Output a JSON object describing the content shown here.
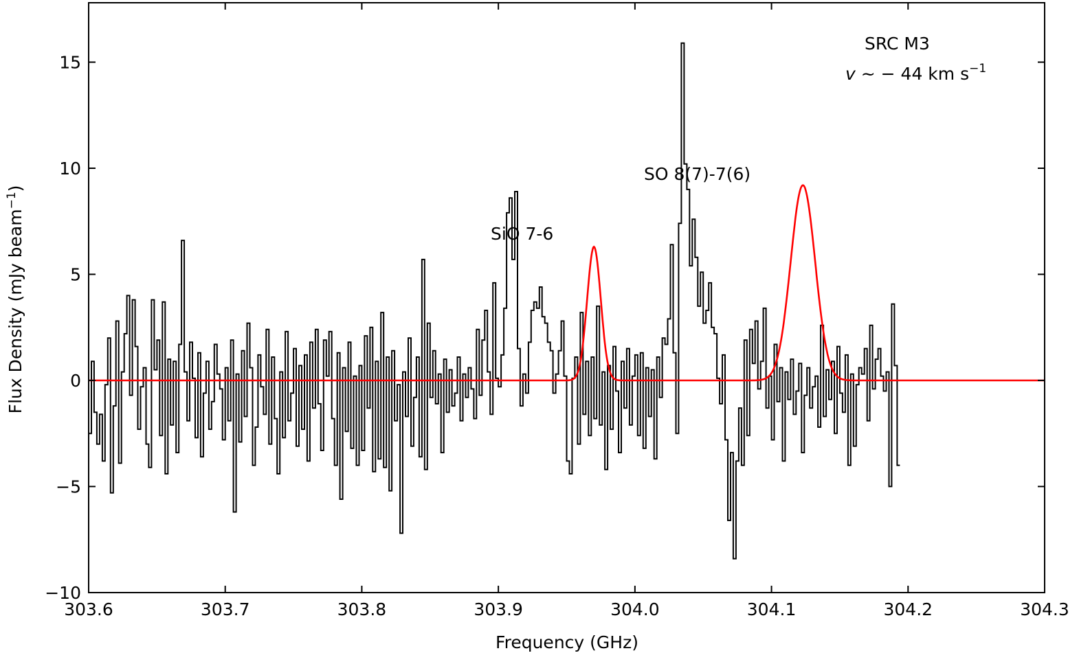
{
  "chart_data": {
    "type": "line",
    "title": "",
    "xlabel": "Frequency (GHz)",
    "ylabel": "Flux Density (mJy beam",
    "ylabel_sup": "−1",
    "ylabel_close": ")",
    "xlim": [
      303.6,
      304.3
    ],
    "ylim": [
      -10.3,
      17.2
    ],
    "xticks": [
      303.6,
      303.7,
      303.8,
      303.9,
      304.0,
      304.1,
      304.2,
      304.3
    ],
    "xtick_labels": [
      "303.6",
      "303.7",
      "303.8",
      "303.9",
      "304.0",
      "304.1",
      "304.2",
      "304.3"
    ],
    "yticks": [
      -10,
      -5,
      0,
      5,
      10,
      15
    ],
    "ytick_labels": [
      "−10",
      "−5",
      "0",
      "5",
      "10",
      "15"
    ],
    "grid": false,
    "legend": null,
    "annotations": {
      "source": "SRC M3",
      "velocity_var": "v",
      "velocity_text": " ~ − 44 km s",
      "velocity_sup": "−1",
      "sio_line": "SiO 7-6",
      "so_line": "SO 8(7)-7(6)"
    },
    "series": [
      {
        "style": "step",
        "color": "#000000",
        "x_start": 303.6,
        "x_step": 0.002,
        "values": [
          -2.5,
          0.9,
          -1.5,
          -3.0,
          -1.6,
          -3.8,
          -0.2,
          2.0,
          -5.3,
          -1.2,
          2.8,
          -3.9,
          0.4,
          2.2,
          4.0,
          -0.7,
          3.8,
          1.6,
          -2.3,
          -0.3,
          0.6,
          -3.0,
          -4.1,
          3.8,
          0.5,
          1.9,
          -2.6,
          3.7,
          -4.4,
          1.0,
          -2.1,
          0.9,
          -3.4,
          1.7,
          6.6,
          0.4,
          -1.9,
          1.8,
          0.1,
          -2.7,
          1.3,
          -3.6,
          -0.6,
          0.9,
          -2.3,
          -1.0,
          1.7,
          0.3,
          -0.4,
          -2.8,
          0.6,
          -1.9,
          1.9,
          -6.2,
          0.3,
          -2.9,
          1.4,
          -1.7,
          2.7,
          0.6,
          -4.0,
          -2.2,
          1.2,
          -0.3,
          -1.6,
          2.4,
          -3.0,
          1.1,
          -1.8,
          -4.4,
          0.4,
          -2.7,
          2.3,
          -1.9,
          -0.6,
          1.5,
          -3.1,
          0.7,
          -2.3,
          1.2,
          -3.8,
          1.8,
          -1.3,
          2.4,
          -1.1,
          -3.3,
          1.9,
          0.2,
          2.3,
          -1.8,
          -4.0,
          1.3,
          -5.6,
          0.6,
          -2.4,
          1.8,
          -3.2,
          0.2,
          -4.0,
          0.7,
          -3.3,
          2.1,
          -1.3,
          2.5,
          -4.3,
          0.9,
          -3.7,
          3.2,
          -4.1,
          1.1,
          -5.2,
          1.4,
          -1.9,
          -0.2,
          -7.2,
          0.4,
          -1.7,
          2.0,
          -3.1,
          -0.8,
          1.1,
          -3.6,
          5.7,
          -4.2,
          2.7,
          -0.8,
          1.4,
          -1.1,
          0.3,
          -3.4,
          1.0,
          -1.5,
          0.5,
          -1.2,
          -0.6,
          1.1,
          -1.9,
          0.3,
          -0.8,
          0.6,
          -0.4,
          -1.8,
          2.4,
          -0.7,
          1.9,
          3.3,
          0.4,
          -1.6,
          4.6,
          0.1,
          -0.3,
          1.2,
          3.4,
          7.9,
          8.6,
          5.7,
          8.9,
          1.5,
          -1.2,
          0.3,
          -0.6,
          1.8,
          3.3,
          3.7,
          3.4,
          4.4,
          3.0,
          2.7,
          1.8,
          1.4,
          -0.6,
          0.3,
          1.4,
          2.8,
          0.2,
          -3.8,
          -4.4,
          0.1,
          1.1,
          -3.0,
          3.2,
          -1.6,
          0.9,
          -2.6,
          1.1,
          -1.8,
          3.5,
          -2.1,
          0.4,
          -4.2,
          0.7,
          -2.3,
          1.6,
          -0.5,
          -3.4,
          0.9,
          -1.3,
          1.5,
          -2.1,
          0.2,
          1.2,
          -2.6,
          1.3,
          -3.2,
          0.6,
          -1.7,
          0.5,
          -3.7,
          1.1,
          -0.8,
          2.0,
          1.7,
          2.9,
          6.4,
          1.3,
          -2.5,
          7.4,
          15.9,
          10.2,
          9.0,
          5.4,
          7.6,
          5.8,
          3.5,
          5.1,
          2.7,
          3.3,
          4.6,
          2.5,
          2.2,
          0.1,
          -1.1,
          1.2,
          -2.8,
          -6.6,
          -3.4,
          -8.4,
          -3.8,
          -1.3,
          -4.0,
          1.9,
          -2.6,
          2.4,
          0.8,
          2.8,
          -0.4,
          0.9,
          3.4,
          -1.3,
          0.2,
          -2.8,
          1.7,
          -1.0,
          0.6,
          -3.8,
          0.4,
          -0.9,
          1.0,
          -1.6,
          -0.5,
          0.8,
          -3.4,
          -0.7,
          0.6,
          -1.3,
          -0.3,
          0.2,
          -2.2,
          2.6,
          -1.7,
          0.5,
          -0.9,
          0.9,
          -2.5,
          1.6,
          -0.6,
          -1.5,
          1.2,
          -4.0,
          0.3,
          -3.1,
          -0.2,
          0.6,
          0.3,
          1.5,
          -1.9,
          2.6,
          -0.4,
          1.0,
          1.5,
          0.2,
          -0.5,
          0.4,
          -5.0,
          3.6,
          0.7,
          -4.0
        ]
      },
      {
        "style": "gaussian_fit",
        "color": "#ff0000",
        "baseline": 0,
        "components": [
          {
            "center": 303.97,
            "amplitude": 6.3,
            "sigma": 0.005
          },
          {
            "center": 304.123,
            "amplitude": 9.2,
            "sigma": 0.009
          }
        ]
      }
    ]
  }
}
